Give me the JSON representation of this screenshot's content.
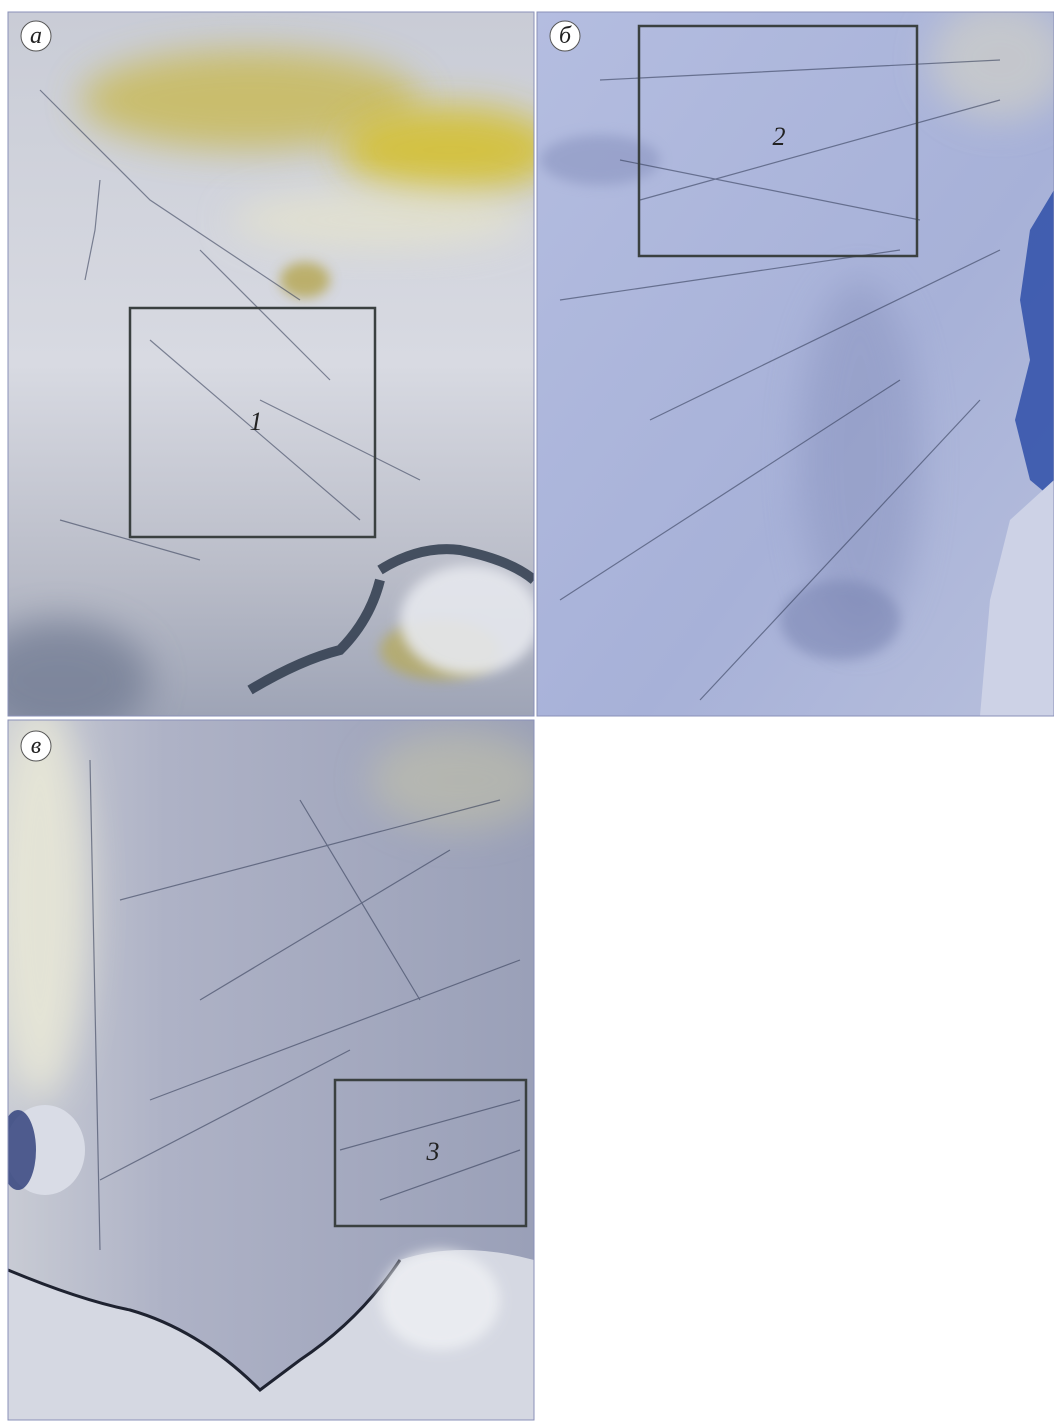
{
  "panels": [
    {
      "label": "а",
      "region": "1"
    },
    {
      "label": "б",
      "region": "2"
    },
    {
      "label": "в",
      "region": "3"
    }
  ]
}
